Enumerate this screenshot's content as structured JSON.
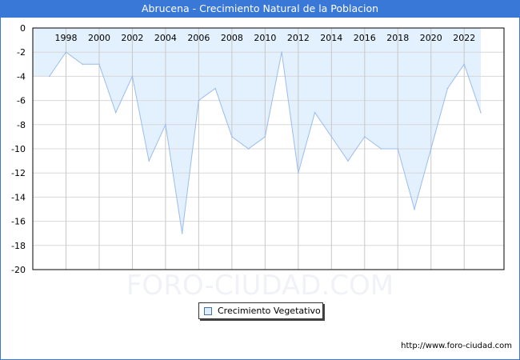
{
  "title": "Abrucena - Crecimiento Natural de la Poblacion",
  "watermark": "FORO-CIUDAD.COM",
  "footer_url": "http://www.foro-ciudad.com",
  "colors": {
    "title_bg": "#3a78d8",
    "fill": "#e3f0fd",
    "line": "#9bbcf0",
    "grid": "#d8d8d8"
  },
  "chart_data": {
    "type": "area",
    "title": "Abrucena - Crecimiento Natural de la Poblacion",
    "xlabel": "",
    "ylabel": "",
    "xlim": [
      1996,
      2024.4
    ],
    "ylim": [
      -20,
      0
    ],
    "x_ticks": [
      1998,
      2000,
      2002,
      2004,
      2006,
      2008,
      2010,
      2012,
      2014,
      2016,
      2018,
      2020,
      2022
    ],
    "y_ticks": [
      0,
      -2,
      -4,
      -6,
      -8,
      -10,
      -12,
      -14,
      -16,
      -18,
      -20
    ],
    "grid": true,
    "legend_position": "bottom-center",
    "series": [
      {
        "name": "Crecimiento Vegetativo",
        "x": [
          1997,
          1998,
          1999,
          2000,
          2001,
          2002,
          2003,
          2004,
          2005,
          2006,
          2007,
          2008,
          2009,
          2010,
          2011,
          2012,
          2013,
          2014,
          2015,
          2016,
          2017,
          2018,
          2019,
          2020,
          2021,
          2022,
          2023
        ],
        "values": [
          -4,
          -2,
          -3,
          -3,
          -7,
          -4,
          -11,
          -8,
          -17,
          -6,
          -5,
          -9,
          -10,
          -9,
          -2,
          -12,
          -7,
          -9,
          -11,
          -9,
          -10,
          -10,
          -15,
          -10,
          -5,
          -3,
          -7
        ]
      }
    ]
  }
}
